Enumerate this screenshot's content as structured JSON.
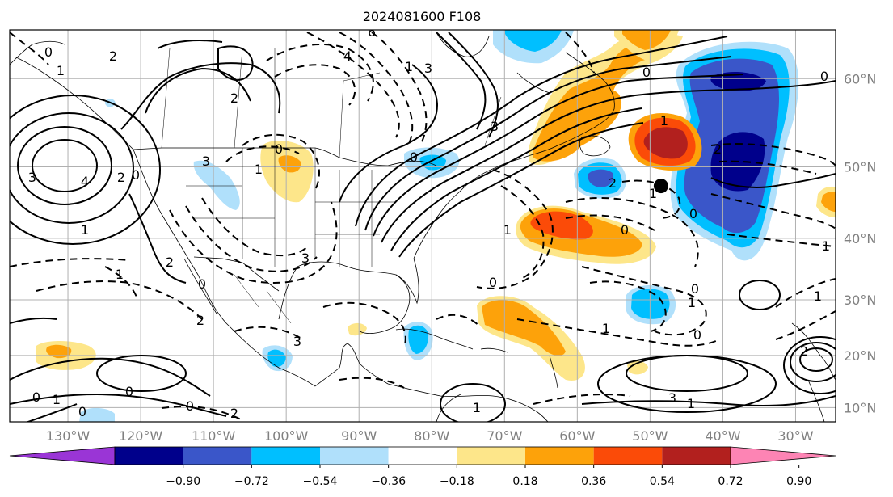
{
  "title": "2024081600 F108",
  "lon_labels": [
    "130°W",
    "120°W",
    "110°W",
    "100°W",
    "90°W",
    "80°W",
    "70°W",
    "60°W",
    "50°W",
    "40°W",
    "30°W"
  ],
  "lat_labels": [
    "10°N",
    "20°N",
    "30°N",
    "40°N",
    "50°N",
    "60°N"
  ],
  "colorbar": {
    "tick_labels": [
      "−0.90",
      "−0.72",
      "−0.54",
      "−0.36",
      "−0.18",
      "0.18",
      "0.36",
      "0.54",
      "0.72",
      "0.90"
    ],
    "colors": [
      "#9a35d6",
      "#00008b",
      "#3a56c9",
      "#00bfff",
      "#b0e0fb",
      "#ffffff",
      "#fde68a",
      "#fda20a",
      "#fb4b08",
      "#b2201e",
      "#fd84b4"
    ]
  },
  "contour_labels": [
    "3",
    "4",
    "2",
    "1",
    "0",
    "1",
    "0",
    "2",
    "3",
    "6",
    "4",
    "2",
    "1",
    "0",
    "3",
    "2",
    "1",
    "0",
    "2",
    "3",
    "1",
    "0",
    "3",
    "2",
    "1",
    "0",
    "1",
    "0",
    "2",
    "1",
    "0",
    "0",
    "1",
    "2",
    "3",
    "1",
    "0",
    "1",
    "3",
    "1",
    "0",
    "0",
    "1",
    "0",
    "0",
    "2",
    "1",
    "0",
    "1",
    "0"
  ],
  "marker": {
    "lon": -48.5,
    "lat": 47.5
  }
}
